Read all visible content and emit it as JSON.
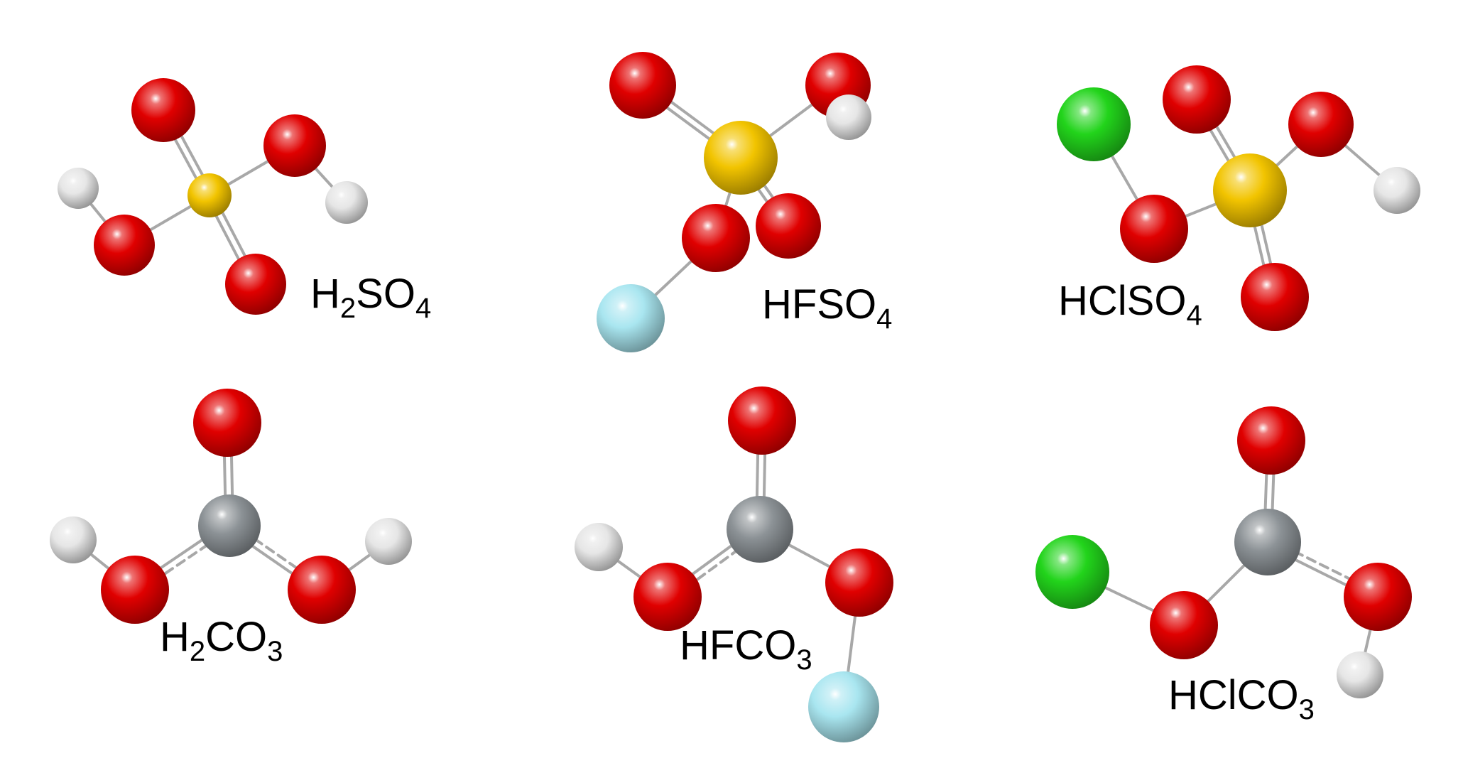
{
  "colors": {
    "O": "#e00000",
    "S": "#f2c400",
    "H": "#e6e6e6",
    "F": "#a9e6f0",
    "Cl": "#22d41b",
    "C": "#8c9296",
    "bond": "#a8a8a8"
  },
  "molecules": [
    {
      "id": "h2so4",
      "label": {
        "parts": [
          "H",
          "2",
          "SO",
          "4"
        ],
        "sub": [
          false,
          true,
          false,
          true
        ]
      },
      "atoms": [
        {
          "el": "O"
        },
        {
          "el": "O"
        },
        {
          "el": "O"
        },
        {
          "el": "O"
        },
        {
          "el": "S"
        },
        {
          "el": "H"
        },
        {
          "el": "H"
        }
      ]
    },
    {
      "id": "hfso4",
      "label": {
        "parts": [
          "HFSO",
          "4"
        ],
        "sub": [
          false,
          true
        ]
      },
      "atoms": [
        {
          "el": "O"
        },
        {
          "el": "O"
        },
        {
          "el": "H"
        },
        {
          "el": "S"
        },
        {
          "el": "O"
        },
        {
          "el": "O"
        },
        {
          "el": "F"
        }
      ]
    },
    {
      "id": "hclso4",
      "label": {
        "parts": [
          "HClSO",
          "4"
        ],
        "sub": [
          false,
          true
        ]
      },
      "atoms": [
        {
          "el": "Cl"
        },
        {
          "el": "O"
        },
        {
          "el": "O"
        },
        {
          "el": "S"
        },
        {
          "el": "O"
        },
        {
          "el": "H"
        },
        {
          "el": "O"
        }
      ]
    },
    {
      "id": "h2co3",
      "label": {
        "parts": [
          "H",
          "2",
          "CO",
          "3"
        ],
        "sub": [
          false,
          true,
          false,
          true
        ]
      },
      "atoms": [
        {
          "el": "O"
        },
        {
          "el": "C"
        },
        {
          "el": "H"
        },
        {
          "el": "H"
        },
        {
          "el": "O"
        },
        {
          "el": "O"
        }
      ]
    },
    {
      "id": "hfco3",
      "label": {
        "parts": [
          "HFCO",
          "3"
        ],
        "sub": [
          false,
          true
        ]
      },
      "atoms": [
        {
          "el": "O"
        },
        {
          "el": "C"
        },
        {
          "el": "H"
        },
        {
          "el": "O"
        },
        {
          "el": "O"
        },
        {
          "el": "F"
        }
      ]
    },
    {
      "id": "hclco3",
      "label": {
        "parts": [
          "HClCO",
          "3"
        ],
        "sub": [
          false,
          true
        ]
      },
      "atoms": [
        {
          "el": "O"
        },
        {
          "el": "C"
        },
        {
          "el": "Cl"
        },
        {
          "el": "O"
        },
        {
          "el": "O"
        },
        {
          "el": "H"
        }
      ]
    }
  ]
}
